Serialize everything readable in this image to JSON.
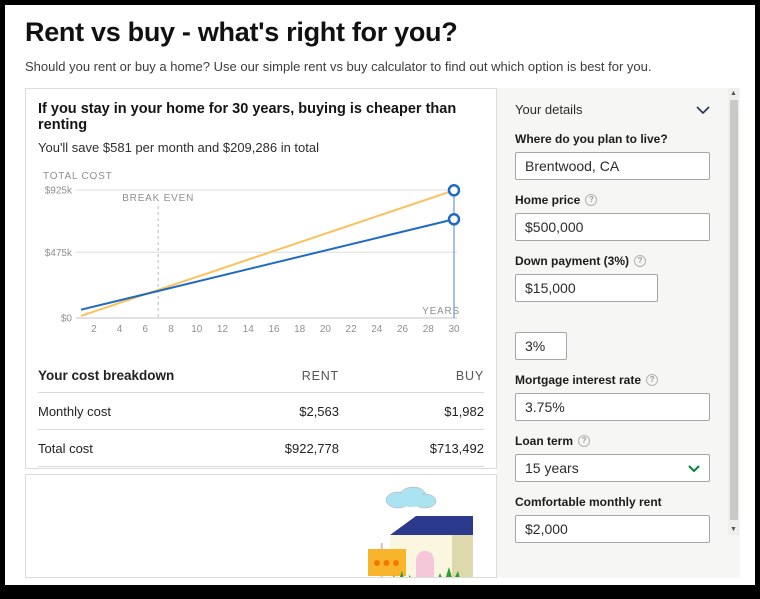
{
  "page": {
    "title": "Rent vs buy - what's right for you?",
    "subtitle": "Should you rent or buy a home? Use our simple rent vs buy calculator to find out which option is best for you."
  },
  "results": {
    "headline": "If you stay in your home for 30 years, buying is cheaper than renting",
    "savings": "You'll save $581 per month and $209,286 in total"
  },
  "chart_data": {
    "type": "line",
    "ylabel": "TOTAL COST",
    "xlabel": "YEARS",
    "xlim": [
      1,
      30
    ],
    "ylim": [
      0,
      925000
    ],
    "x_ticks": [
      2,
      4,
      6,
      8,
      10,
      12,
      14,
      16,
      18,
      20,
      22,
      24,
      26,
      28,
      30
    ],
    "y_ticks": [
      {
        "label": "$925k",
        "value": 925000
      },
      {
        "label": "$475k",
        "value": 475000
      },
      {
        "label": "$0",
        "value": 0
      }
    ],
    "grid": true,
    "series": [
      {
        "name": "rent",
        "color": "#FBC15C",
        "points": [
          [
            1,
            15000
          ],
          [
            30,
            922778
          ]
        ]
      },
      {
        "name": "buy",
        "color": "#1E6BC6",
        "points": [
          [
            1,
            60000
          ],
          [
            30,
            713492
          ]
        ]
      }
    ],
    "break_even": {
      "year": 7,
      "label": "BREAK EVEN"
    },
    "end_markers": {
      "year": 30,
      "values": [
        922778,
        713492
      ],
      "stroke": "#1E6BC6"
    }
  },
  "table": {
    "title": "Your cost breakdown",
    "col_rent": "RENT",
    "col_buy": "BUY",
    "rows": [
      {
        "label": "Monthly cost",
        "rent": "$2,563",
        "buy": "$1,982"
      },
      {
        "label": "Total cost",
        "rent": "$922,778",
        "buy": "$713,492"
      }
    ]
  },
  "sidebar": {
    "header": "Your details",
    "location": {
      "label": "Where do you plan to live?",
      "value": "Brentwood, CA"
    },
    "home_price": {
      "label": "Home price",
      "value": "$500,000"
    },
    "down_payment": {
      "label": "Down payment (3%)",
      "value": "$15,000"
    },
    "down_payment_pct": {
      "value": "3%"
    },
    "interest_rate": {
      "label": "Mortgage interest rate",
      "value": "3.75%"
    },
    "loan_term": {
      "label": "Loan term",
      "value": "15 years"
    },
    "monthly_rent": {
      "label": "Comfortable monthly rent",
      "value": "$2,000"
    }
  },
  "ui": {
    "help_glyph": "?",
    "scroll_up_glyph": "▲",
    "scroll_down_glyph": "▼"
  },
  "colors": {
    "rent_line": "#FBC15C",
    "buy_line": "#1E6BC6",
    "select_chevron": "#00853D",
    "sidebar_bg": "#f6f6f4"
  }
}
